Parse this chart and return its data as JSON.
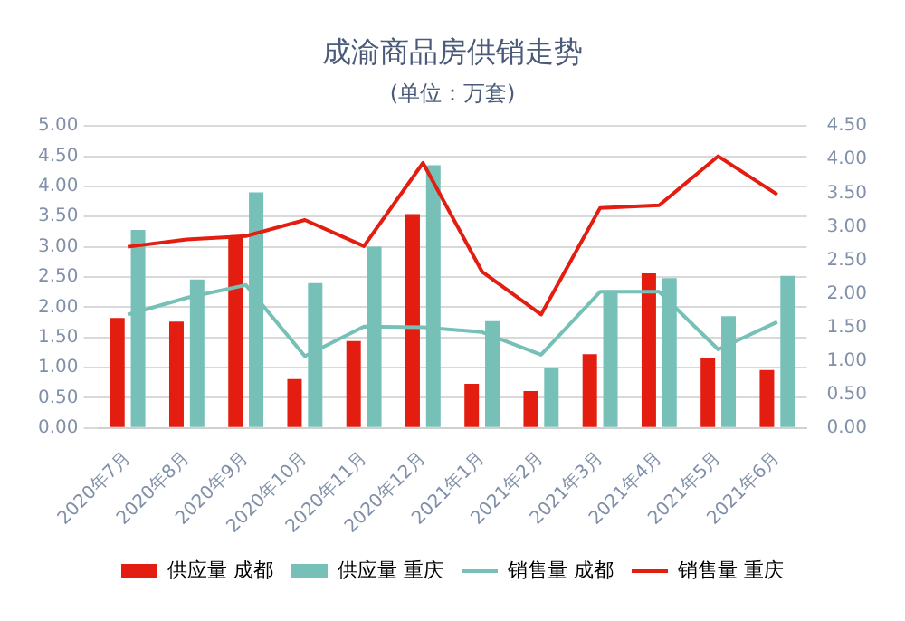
{
  "chart_data": {
    "type": "bar",
    "title": "成渝商品房供销走势",
    "subtitle": "(单位：万套)",
    "categories": [
      "2020年7月",
      "2020年8月",
      "2020年9月",
      "2020年10月",
      "2020年11月",
      "2020年12月",
      "2021年1月",
      "2021年2月",
      "2021年3月",
      "2021年4月",
      "2021年5月",
      "2021年6月"
    ],
    "series": [
      {
        "name": "供应量 成都",
        "color": "#e31e10",
        "values": [
          1.82,
          1.76,
          3.15,
          0.81,
          1.44,
          3.54,
          0.73,
          0.61,
          1.22,
          2.56,
          1.16,
          0.96
        ]
      },
      {
        "name": "供应量 重庆",
        "color": "#76c0b8",
        "values": [
          3.28,
          2.46,
          3.9,
          2.4,
          3.0,
          4.35,
          1.77,
          0.99,
          2.25,
          2.48,
          1.85,
          2.52
        ]
      },
      {
        "name": "销售量 成都",
        "type": "line",
        "axis": "y2",
        "color": "#76c0b8",
        "values": [
          1.69,
          1.94,
          2.13,
          1.07,
          1.51,
          1.5,
          1.43,
          1.09,
          2.03,
          2.03,
          1.17,
          1.58
        ]
      },
      {
        "name": "销售量 重庆",
        "type": "line",
        "axis": "y2",
        "color": "#e31e10",
        "values": [
          2.7,
          2.81,
          2.86,
          3.1,
          2.71,
          3.95,
          2.33,
          1.69,
          3.28,
          3.32,
          4.05,
          3.48
        ]
      }
    ],
    "ylim": [
      0,
      5
    ],
    "yticks": [
      {
        "value": 0,
        "label": "0.00"
      },
      {
        "value": 0.5,
        "label": "0.50"
      },
      {
        "value": 1,
        "label": "1.00"
      },
      {
        "value": 1.5,
        "label": "1.50"
      },
      {
        "value": 2,
        "label": "2.00"
      },
      {
        "value": 2.5,
        "label": "2.50"
      },
      {
        "value": 3,
        "label": "3.00"
      },
      {
        "value": 3.5,
        "label": "3.50"
      },
      {
        "value": 4,
        "label": "4.00"
      },
      {
        "value": 4.5,
        "label": "4.50"
      },
      {
        "value": 5,
        "label": "5.00"
      }
    ],
    "y2lim": [
      0,
      4.5
    ],
    "y2ticks": [
      {
        "value": 0,
        "label": "0.00"
      },
      {
        "value": 0.5,
        "label": "0.50"
      },
      {
        "value": 1,
        "label": "1.00"
      },
      {
        "value": 1.5,
        "label": "1.50"
      },
      {
        "value": 2,
        "label": "2.00"
      },
      {
        "value": 2.5,
        "label": "2.50"
      },
      {
        "value": 3,
        "label": "3.00"
      },
      {
        "value": 3.5,
        "label": "3.50"
      },
      {
        "value": 4,
        "label": "4.00"
      },
      {
        "value": 4.5,
        "label": "4.50"
      }
    ],
    "grid": "y",
    "legend": "bottom",
    "marker": "none",
    "line_style": "solid"
  }
}
